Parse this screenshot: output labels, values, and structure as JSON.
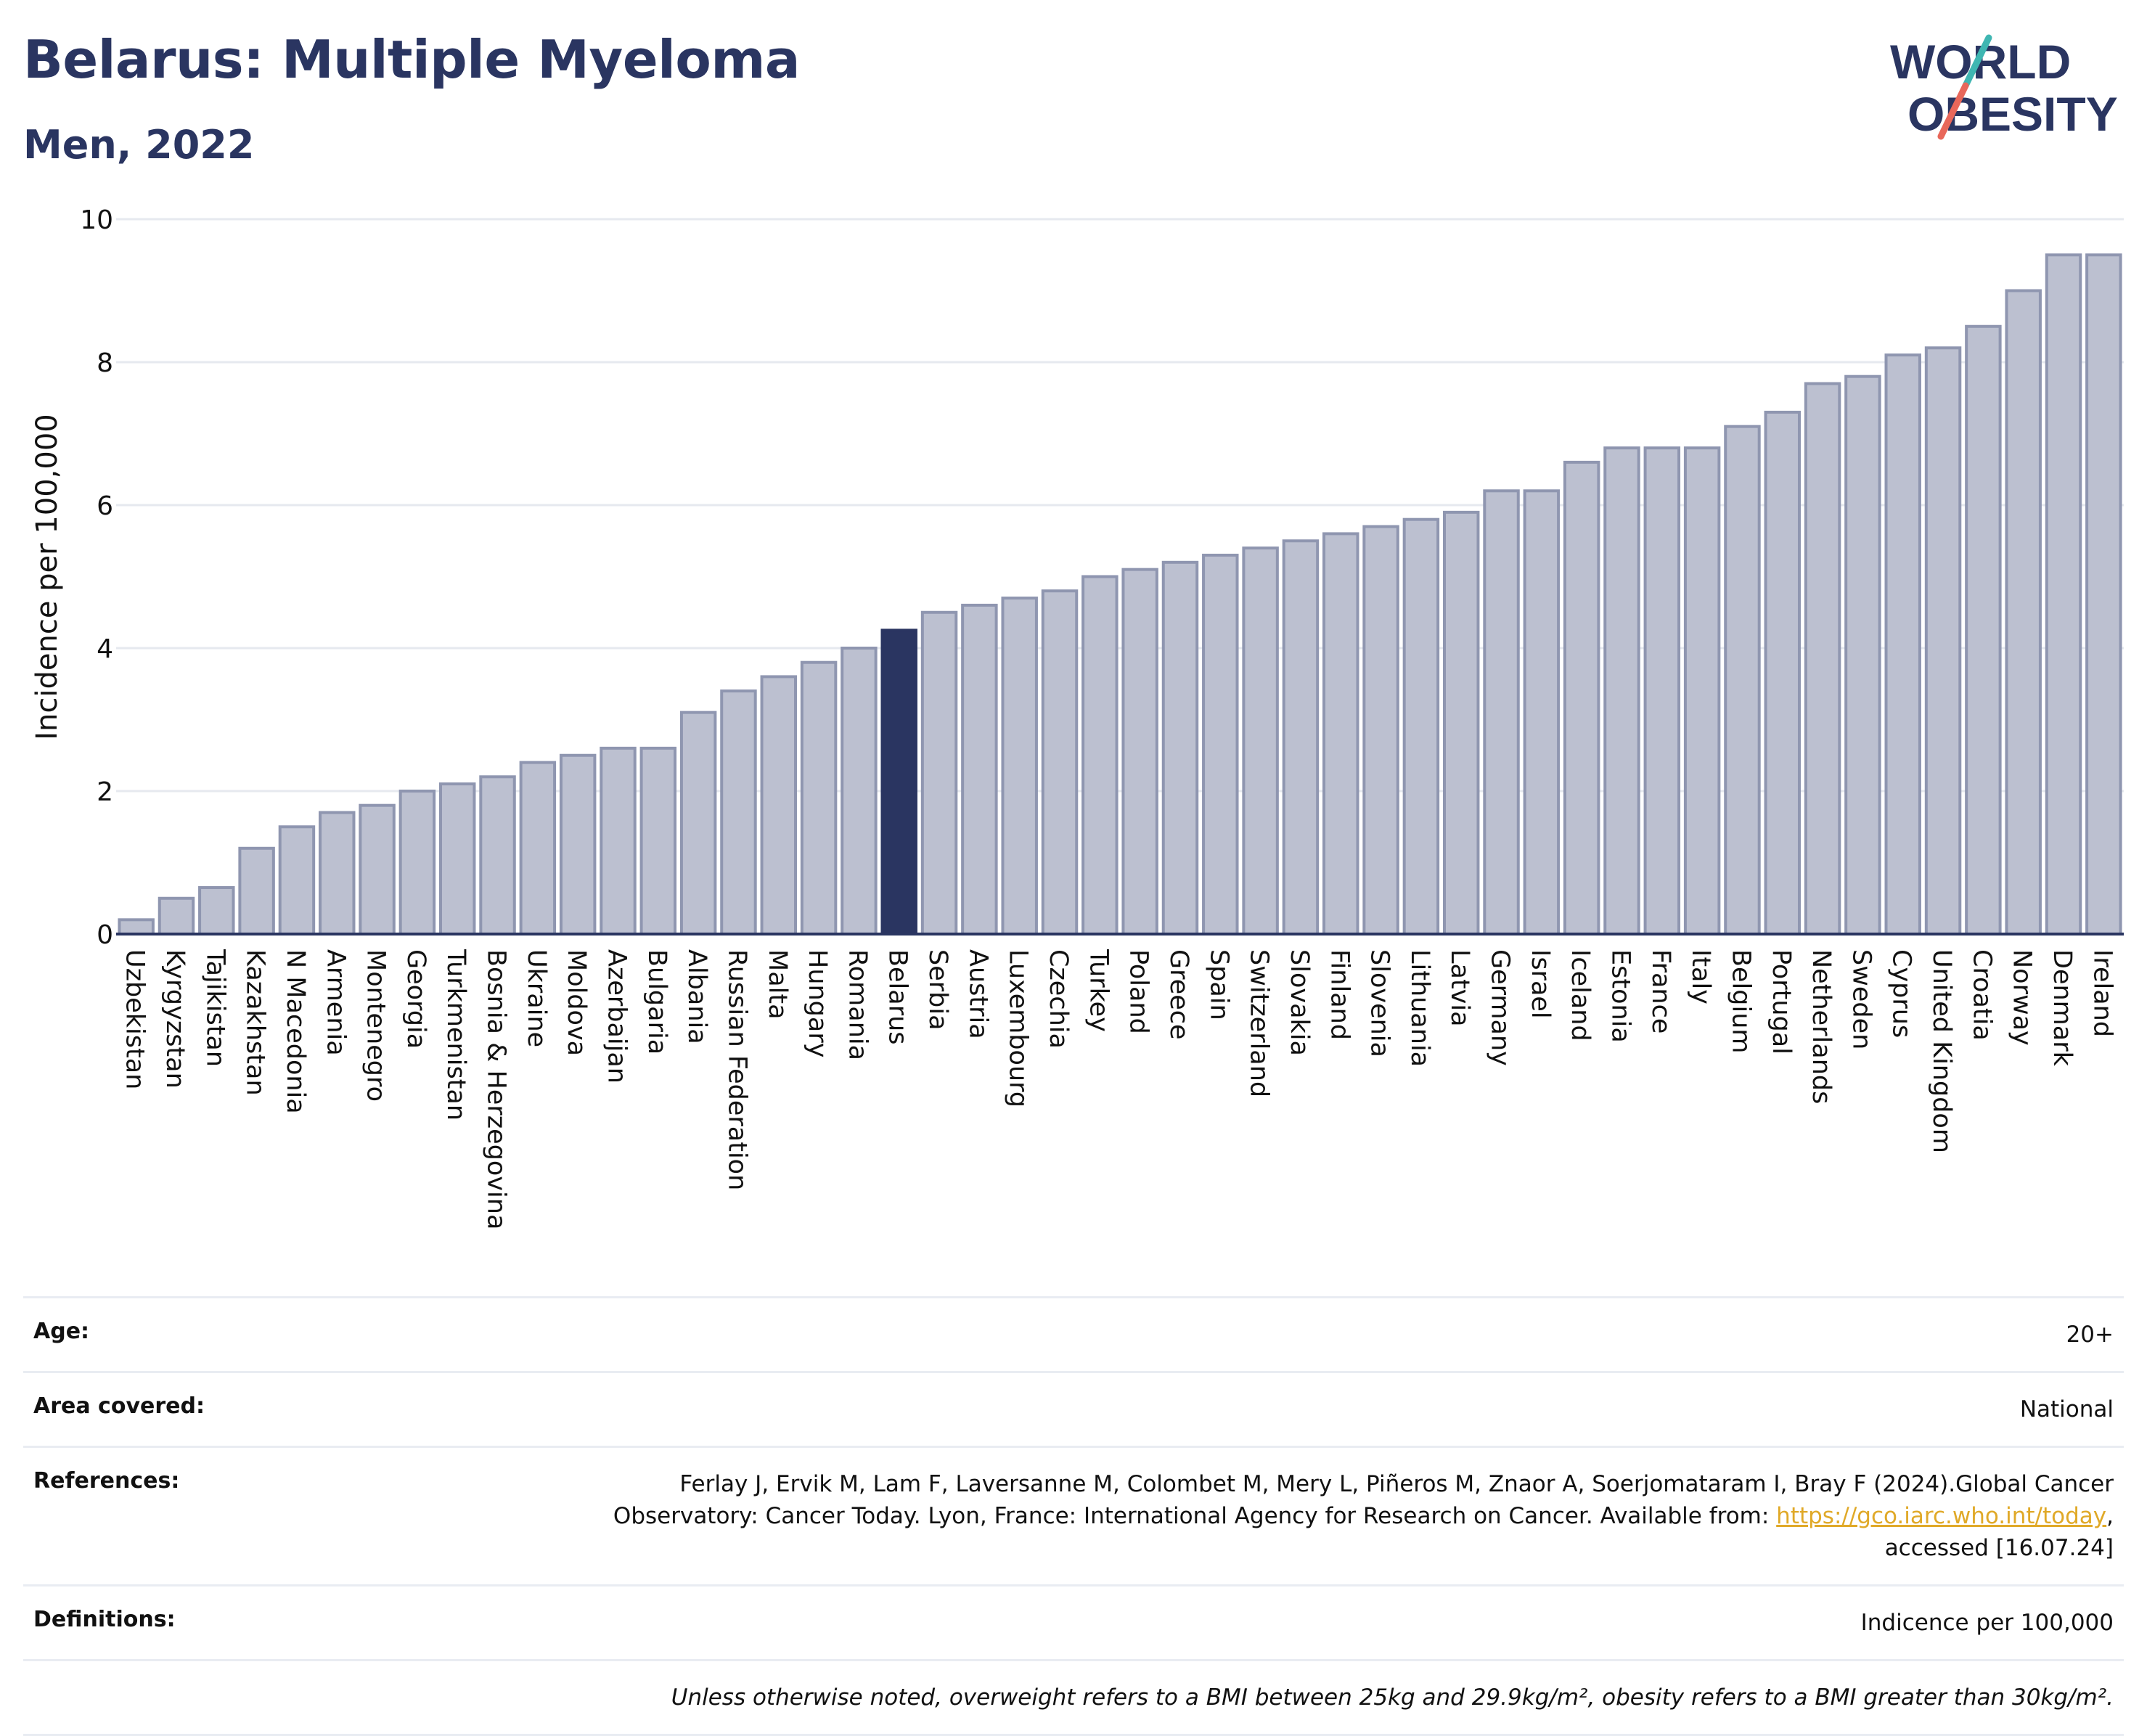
{
  "header": {
    "title": "Belarus: Multiple Myeloma",
    "subtitle": "Men, 2022"
  },
  "logo": {
    "line1": "WORLD",
    "line2": "OBESITY",
    "text_color": "#2a3561",
    "slash_colors": [
      "#3fb6b2",
      "#e8675a"
    ]
  },
  "colors": {
    "bar_default": "#bcc0d0",
    "bar_stroke": "#8f96b0",
    "bar_highlight": "#2a3561",
    "grid": "#e6e9ef",
    "axis_text": "#111111"
  },
  "chart_data": {
    "type": "bar",
    "highlight": "Belarus",
    "ylabel": "Incidence per 100,000",
    "xlabel": "",
    "ylim": [
      0,
      10
    ],
    "yticks": [
      0,
      2,
      4,
      6,
      8,
      10
    ],
    "grid": true,
    "categories": [
      "Uzbekistan",
      "Kyrgyzstan",
      "Tajikistan",
      "Kazakhstan",
      "N Macedonia",
      "Armenia",
      "Montenegro",
      "Georgia",
      "Turkmenistan",
      "Bosnia & Herzegovina",
      "Ukraine",
      "Moldova",
      "Azerbaijan",
      "Bulgaria",
      "Albania",
      "Russian Federation",
      "Malta",
      "Hungary",
      "Romania",
      "Belarus",
      "Serbia",
      "Austria",
      "Luxembourg",
      "Czechia",
      "Turkey",
      "Poland",
      "Greece",
      "Spain",
      "Switzerland",
      "Slovakia",
      "Finland",
      "Slovenia",
      "Lithuania",
      "Latvia",
      "Germany",
      "Israel",
      "Iceland",
      "Estonia",
      "France",
      "Italy",
      "Belgium",
      "Portugal",
      "Netherlands",
      "Sweden",
      "Cyprus",
      "United Kingdom",
      "Croatia",
      "Norway",
      "Denmark",
      "Ireland"
    ],
    "values": [
      0.2,
      0.5,
      0.65,
      1.2,
      1.5,
      1.7,
      1.8,
      2.0,
      2.1,
      2.2,
      2.4,
      2.5,
      2.6,
      2.6,
      3.1,
      3.4,
      3.6,
      3.8,
      4.0,
      4.25,
      4.5,
      4.6,
      4.7,
      4.8,
      5.0,
      5.1,
      5.2,
      5.3,
      5.4,
      5.5,
      5.6,
      5.7,
      5.8,
      5.9,
      6.2,
      6.2,
      6.6,
      6.8,
      6.8,
      6.8,
      7.1,
      7.3,
      7.7,
      7.8,
      8.1,
      8.2,
      8.5,
      9.0,
      9.5,
      9.5
    ]
  },
  "info": {
    "age_label": "Age:",
    "age_value": "20+",
    "area_label": "Area covered:",
    "area_value": "National",
    "references_label": "References:",
    "references_text_1": "Ferlay J, Ervik M, Lam F, Laversanne M, Colombet M, Mery L, Piñeros M, Znaor A, Soerjomataram I, Bray F (2024).Global Cancer",
    "references_text_2": "Observatory: Cancer Today. Lyon, France: International Agency for Research on Cancer. Available from: ",
    "references_link": "https://gco.iarc.who.int/today",
    "references_text_3": ",",
    "references_text_4": "accessed [16.07.24]",
    "definitions_label": "Definitions:",
    "definitions_value": "Indicence per 100,000",
    "note": "Unless otherwise noted, overweight refers to a BMI between 25kg and 29.9kg/m², obesity refers to a BMI greater than 30kg/m²."
  }
}
